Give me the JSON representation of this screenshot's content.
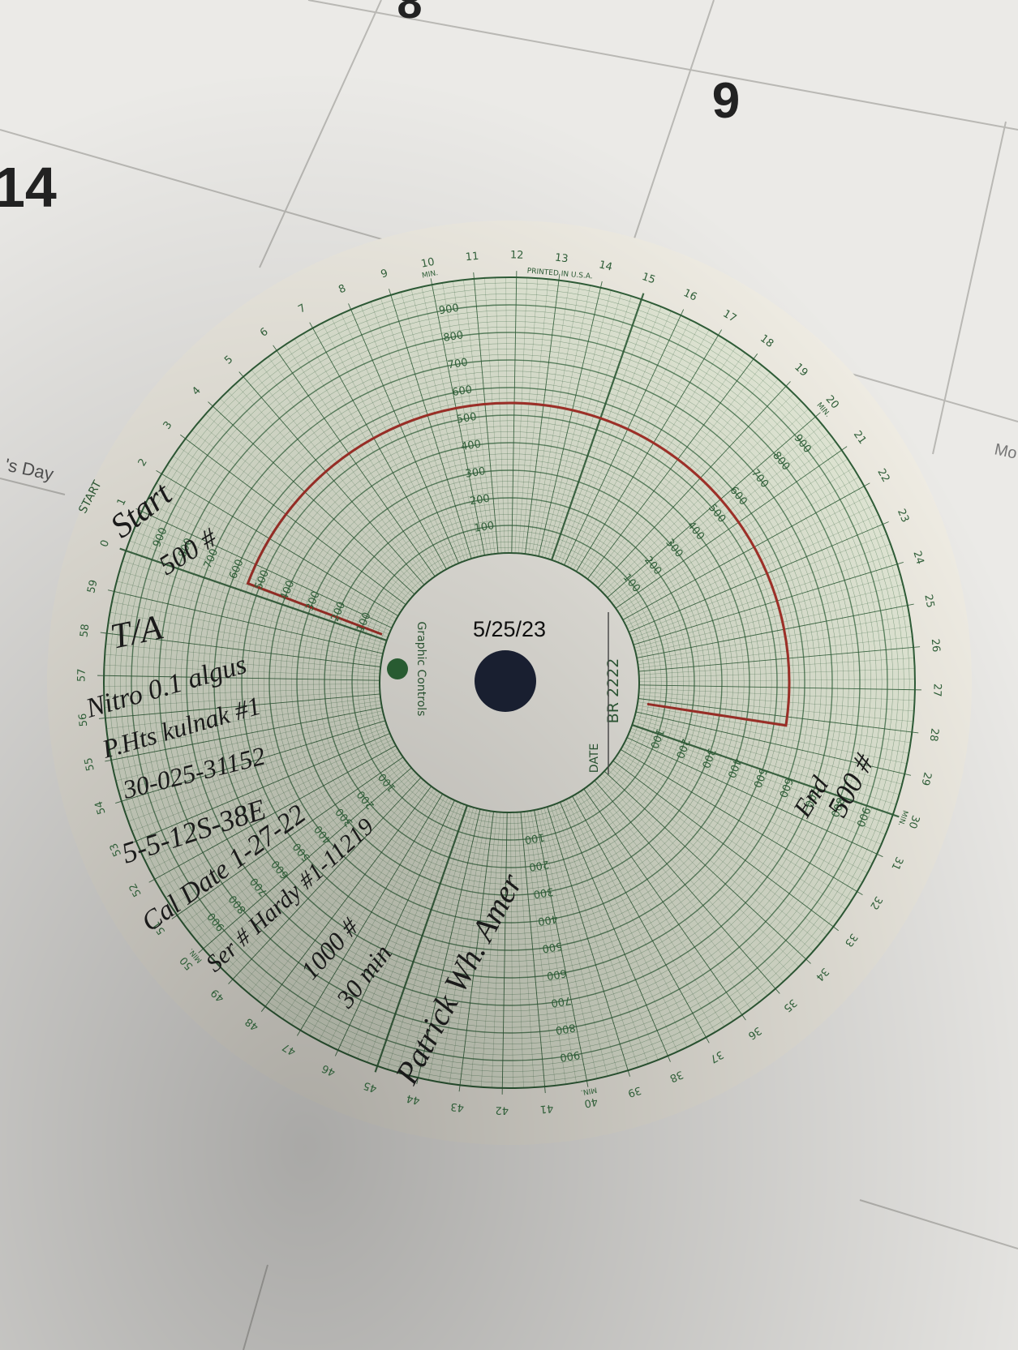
{
  "calendar": {
    "dates": [
      "8",
      "9",
      "14"
    ],
    "holiday": "'s Day",
    "weekday": "Mo"
  },
  "chart_paper": {
    "center_date": "5/25/23",
    "brand": "Graphic Controls",
    "date_label": "DATE",
    "chart_number": "BR 2222",
    "start_label": "START",
    "printed": "PRINTED IN U.S.A.",
    "minute_labels": [
      0,
      1,
      2,
      3,
      4,
      5,
      6,
      7,
      8,
      9,
      10,
      11,
      12,
      13,
      14,
      15,
      16,
      17,
      18,
      19,
      20,
      21,
      22,
      23,
      24,
      25,
      26,
      27,
      28,
      29,
      30,
      31,
      32,
      33,
      34,
      35,
      36,
      37,
      38,
      39,
      40,
      41,
      42,
      43,
      44,
      45,
      46,
      47,
      48,
      49,
      50,
      51,
      52,
      53,
      54,
      55,
      56,
      57,
      58,
      59
    ],
    "minute_unit": "MIN.",
    "scale_labels": [
      100,
      200,
      300,
      400,
      500,
      600,
      700,
      800,
      900
    ]
  },
  "notes": [
    "Start",
    "500 #",
    "T/A",
    "Nitro 0.1 algus",
    "P.Hts kulnak #1",
    "30-025-31152",
    "5-5-12S-38E",
    "Cal Date 1-27-22",
    "Ser # Hardy #1-11219",
    "1000 #",
    "30 min",
    "Patrick Wh. Amer",
    "End",
    "500 #"
  ]
}
